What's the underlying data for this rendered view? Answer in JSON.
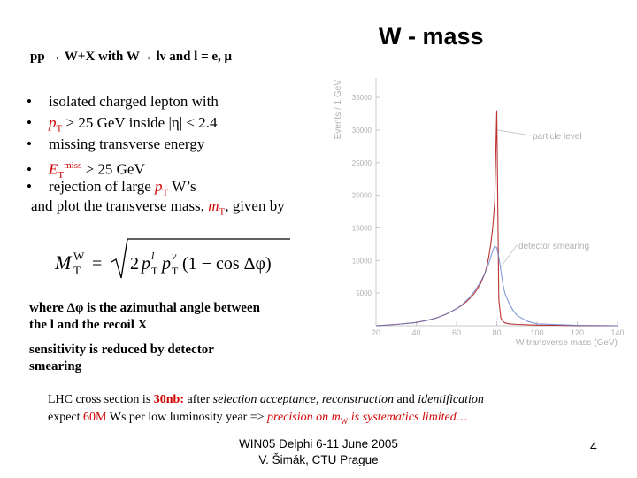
{
  "slide": {
    "title": "W - mass",
    "subtitle": "pp → W+X with W→ lν and l = e, μ",
    "bullets": [
      {
        "pre": "isolated charged lepton with",
        "var": "",
        "sub": "",
        "sup": "",
        "post": ""
      },
      {
        "pre": "",
        "var": "p",
        "sub": "T",
        "sup": "",
        "post": " > 25 GeV inside  |η| < 2.4"
      },
      {
        "pre": "missing transverse energy",
        "var": "",
        "sub": "",
        "sup": "",
        "post": ""
      },
      {
        "pre": "",
        "var": "E",
        "sub": "T",
        "sup": "miss",
        "post": " > 25 GeV"
      },
      {
        "pre": "rejection of large ",
        "var": "p",
        "sub": "T",
        "sup": "",
        "post": " W’s"
      }
    ],
    "bullet_symbol": "•",
    "conclusion_pre": "and plot the transverse mass, ",
    "conclusion_var": "m",
    "conclusion_sub": "T",
    "conclusion_post": ", given by",
    "formula": {
      "lhs_var": "M",
      "lhs_sub": "T",
      "lhs_sup": "W",
      "equals": "=",
      "const": "2",
      "p": "p",
      "t": "T",
      "l": "l",
      "nu": "ν",
      "bracket_text": "(1 − cos Δφ)"
    },
    "note_lines": [
      "where Δφ is the azimuthal angle between",
      "the l and the recoil X",
      "sensitivity is reduced by detector",
      "smearing"
    ],
    "lhc_line1": {
      "a": "LHC cross section is ",
      "b": "30nb:",
      "c": "  after ",
      "d": "selection acceptance, reconstruction",
      "e": " and ",
      "f": "identification"
    },
    "lhc_line2": {
      "a": "expect ",
      "b": "60M",
      "c": " Ws per low luminosity year => ",
      "d": "precision on m",
      "d_sub": "W",
      "e": " is systematics limited…"
    },
    "footer_line1": "WIN05  Delphi 6-11 June 2005",
    "footer_line2": "V. Šimák, CTU Prague",
    "page_number": "4"
  },
  "chart_data": {
    "type": "line",
    "xlabel": "W transverse mass (GeV)",
    "ylabel": "Events / 1 GeV",
    "xlim": [
      20,
      140
    ],
    "ylim": [
      0,
      38000
    ],
    "xticks": [
      "20",
      "40",
      "60",
      "80",
      "100",
      "120",
      "140"
    ],
    "yticks": [
      "5000",
      "10000",
      "15000",
      "20000",
      "25000",
      "30000",
      "35000"
    ],
    "annotations": [
      "particle level",
      "detector smearing"
    ],
    "series": [
      {
        "name": "particle level",
        "x": [
          20,
          30,
          40,
          45,
          50,
          55,
          60,
          63,
          66,
          69,
          72,
          74,
          75,
          76,
          77,
          78,
          79,
          80,
          81,
          82,
          83,
          84,
          86,
          90,
          100,
          120,
          140
        ],
        "y": [
          0,
          200,
          500,
          800,
          1200,
          1800,
          2600,
          3200,
          4000,
          5000,
          6500,
          8000,
          9000,
          10500,
          12500,
          15000,
          19000,
          33000,
          4000,
          1200,
          700,
          450,
          300,
          200,
          100,
          30,
          0
        ],
        "color": "#aa0000"
      },
      {
        "name": "detector smearing",
        "x": [
          20,
          30,
          40,
          45,
          50,
          55,
          60,
          63,
          66,
          69,
          72,
          74,
          76,
          77,
          78,
          79,
          80,
          81,
          82,
          83,
          84,
          86,
          88,
          90,
          95,
          100,
          120,
          140
        ],
        "y": [
          0,
          200,
          500,
          800,
          1200,
          1800,
          2600,
          3300,
          4200,
          5300,
          6800,
          8000,
          9500,
          10500,
          11500,
          12200,
          12000,
          10500,
          8500,
          6500,
          5000,
          3500,
          2400,
          1600,
          700,
          300,
          50,
          0
        ],
        "color": "#6680cc"
      }
    ]
  }
}
